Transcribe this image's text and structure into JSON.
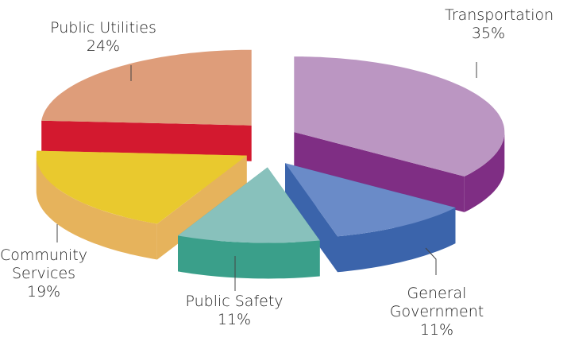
{
  "chart_data": {
    "type": "pie3d",
    "categories": [
      "Transportation",
      "General Government",
      "Public Safety",
      "Community Services",
      "Public Utilities"
    ],
    "values": [
      35,
      11,
      11,
      19,
      24
    ],
    "value_labels": [
      "35%",
      "11%",
      "11%",
      "19%",
      "24%"
    ],
    "colors": [
      "#bb96c2",
      "#6a8bc8",
      "#88c1bc",
      "#e9c92e",
      "#de9d7a"
    ],
    "side_colors": [
      "#7f2e84",
      "#3b64ab",
      "#3a9f8a",
      "#e6b35c",
      "#d3192f"
    ]
  }
}
